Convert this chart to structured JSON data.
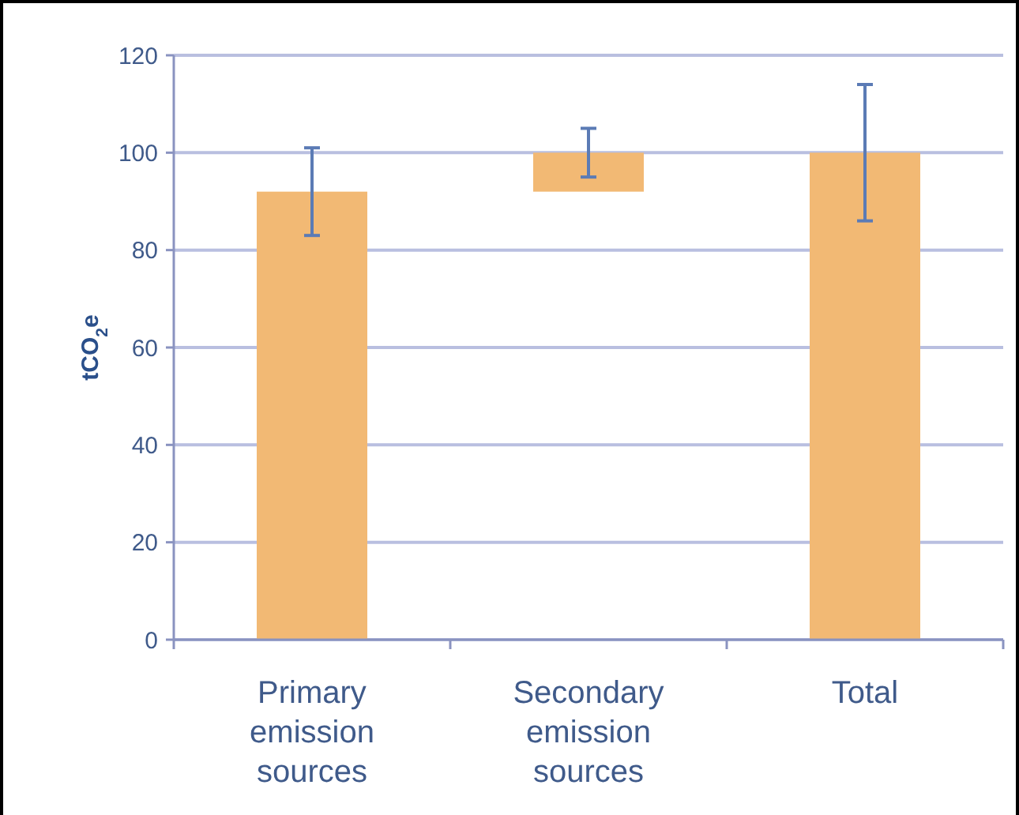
{
  "chart_data": {
    "type": "bar",
    "ylabel": "tCO$_{2}$e",
    "categories": [
      "Primary emission sources",
      "Secondary emission sources",
      "Total"
    ],
    "values": [
      92,
      8,
      100
    ],
    "base": [
      0,
      92,
      0
    ],
    "color": "#f2b974",
    "errors": [
      [
        83,
        101
      ],
      [
        95,
        105
      ],
      [
        86,
        114
      ]
    ],
    "ylim": [
      0,
      120
    ],
    "yticks": [
      0,
      20,
      40,
      60,
      80,
      100,
      120
    ],
    "grid": "y"
  }
}
